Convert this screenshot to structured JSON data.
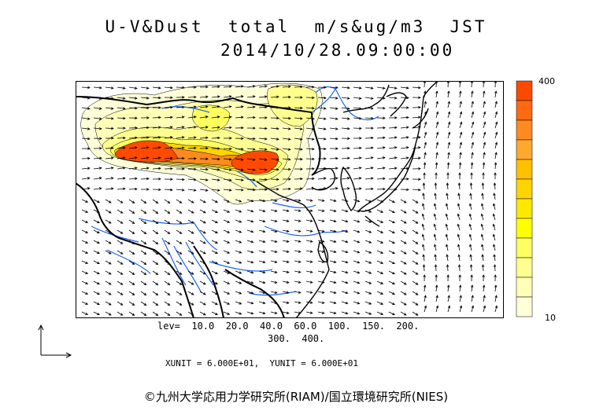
{
  "title_line1": "U-V&Dust  total  m/s&ug/m3  JST",
  "title_line2": "2014/10/28.09:00:00",
  "colorbar": {
    "max_label": "400",
    "min_label": "10",
    "colors": [
      "#ff4a00",
      "#ff6a10",
      "#ff8a20",
      "#ffa830",
      "#ffc000",
      "#ffd400",
      "#ffe800",
      "#ffff00",
      "#ffff60",
      "#ffff90",
      "#ffffb8",
      "#ffffd8"
    ]
  },
  "levels_line1": "lev=  10.0  20.0  40.0  60.0  100.  150.  200.",
  "levels_line2": "300.  400.",
  "units_line": "XUNIT = 6.000E+01,  YUNIT = 6.000E+01",
  "credit": "©九州大学応用力学研究所(RIAM)/国立環境研究所(NIES)",
  "colors": {
    "coast": "#000000",
    "river": "#1e64ff",
    "border": "#000000"
  }
}
